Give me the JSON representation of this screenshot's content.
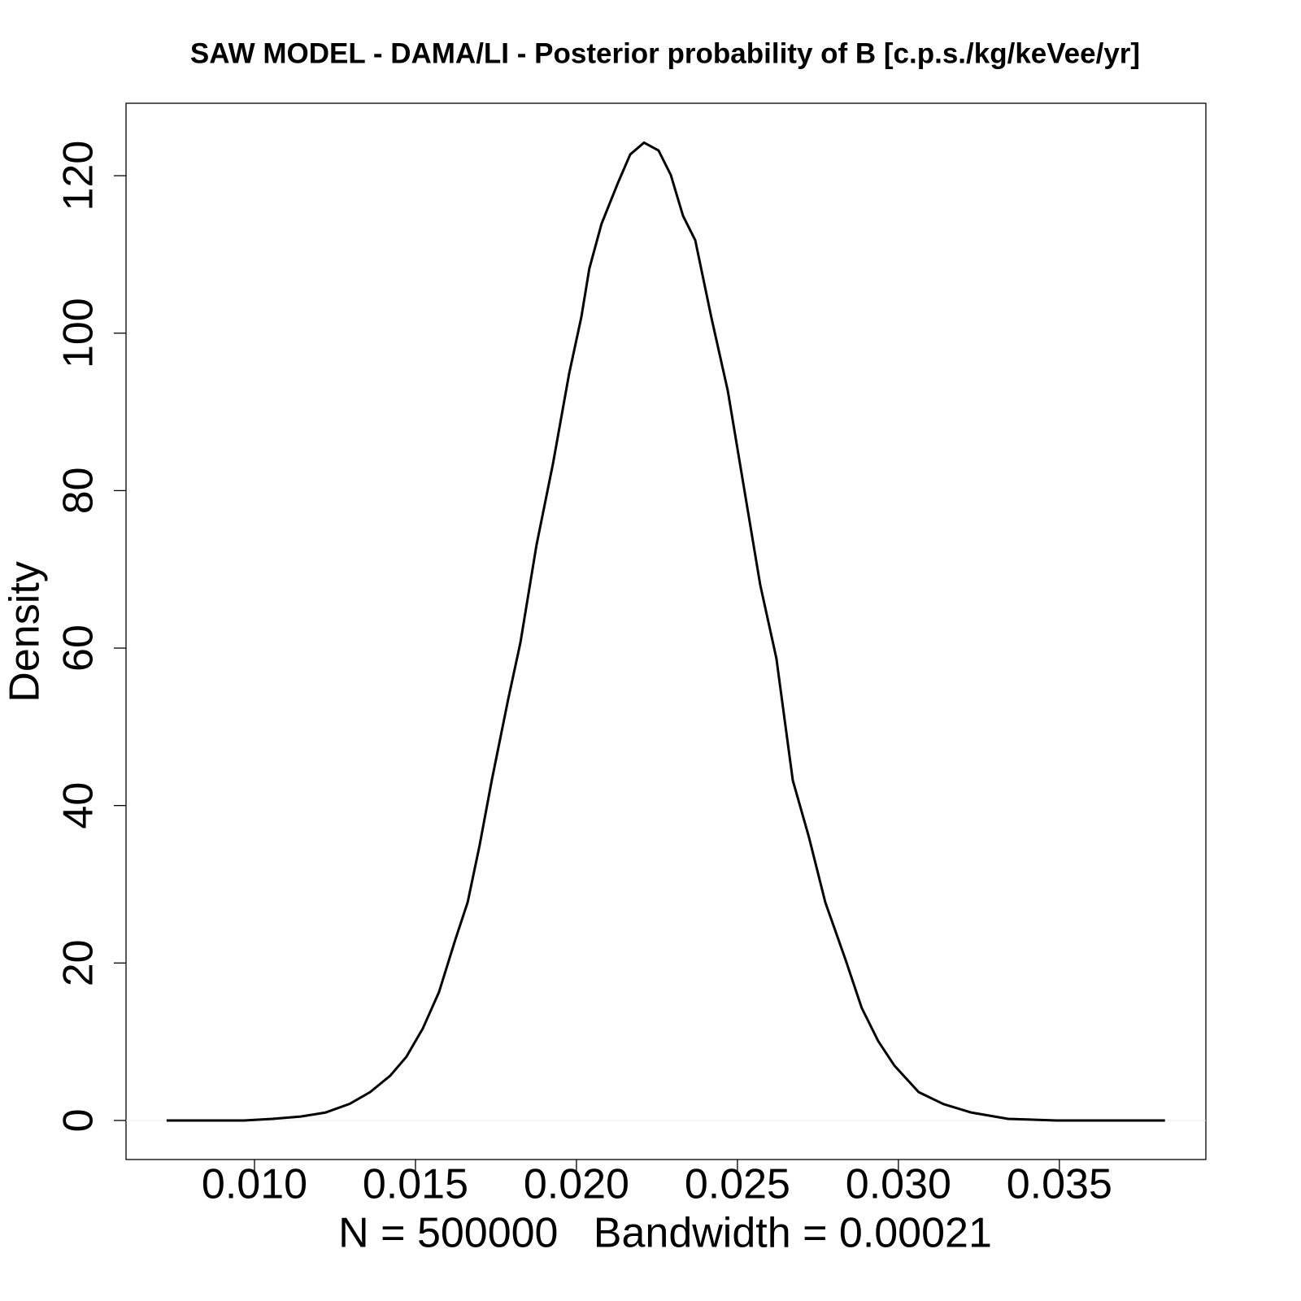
{
  "chart_data": {
    "type": "line",
    "title": "SAW MODEL - DAMA/LI - Posterior probability of B [c.p.s./kg/keVee/yr]",
    "xlabel": "N = 500000   Bandwidth = 0.00021",
    "ylabel": "Density",
    "x": [
      0.00727,
      0.00967,
      0.01056,
      0.01144,
      0.0122,
      0.01295,
      0.01359,
      0.01422,
      0.01472,
      0.01523,
      0.01573,
      0.01624,
      0.01662,
      0.01699,
      0.01737,
      0.01788,
      0.01826,
      0.01876,
      0.01927,
      0.01977,
      0.02015,
      0.0204,
      0.02078,
      0.02129,
      0.02167,
      0.0221,
      0.02255,
      0.02293,
      0.02331,
      0.02369,
      0.02419,
      0.0247,
      0.02508,
      0.02571,
      0.02621,
      0.02672,
      0.02722,
      0.02773,
      0.02836,
      0.02886,
      0.02937,
      0.02987,
      0.03063,
      0.03139,
      0.03227,
      0.03341,
      0.03492,
      0.03828
    ],
    "values": [
      0,
      0,
      0.2,
      0.5,
      1.0,
      2.1,
      3.6,
      5.7,
      8.1,
      11.7,
      16.3,
      23.0,
      27.7,
      34.9,
      43.2,
      53.5,
      60.7,
      73.1,
      83.4,
      94.8,
      102.0,
      108.2,
      113.9,
      119.1,
      122.7,
      124.2,
      123.2,
      120.1,
      114.9,
      111.8,
      102.0,
      92.7,
      83.4,
      68.0,
      58.7,
      43.2,
      36.0,
      27.7,
      20.4,
      14.3,
      10.1,
      7.0,
      3.6,
      2.1,
      1.0,
      0.2,
      0,
      0
    ],
    "color": "#000000",
    "xlim": [
      0.00601,
      0.03955
    ],
    "ylim": [
      -4.96,
      129.2
    ],
    "xticks": [
      {
        "value": 0.01,
        "label": "0.010"
      },
      {
        "value": 0.015,
        "label": "0.015"
      },
      {
        "value": 0.02,
        "label": "0.020"
      },
      {
        "value": 0.025,
        "label": "0.025"
      },
      {
        "value": 0.03,
        "label": "0.030"
      },
      {
        "value": 0.035,
        "label": "0.035"
      }
    ],
    "yticks": [
      0,
      20,
      40,
      60,
      80,
      100,
      120
    ],
    "zero_line": true
  }
}
